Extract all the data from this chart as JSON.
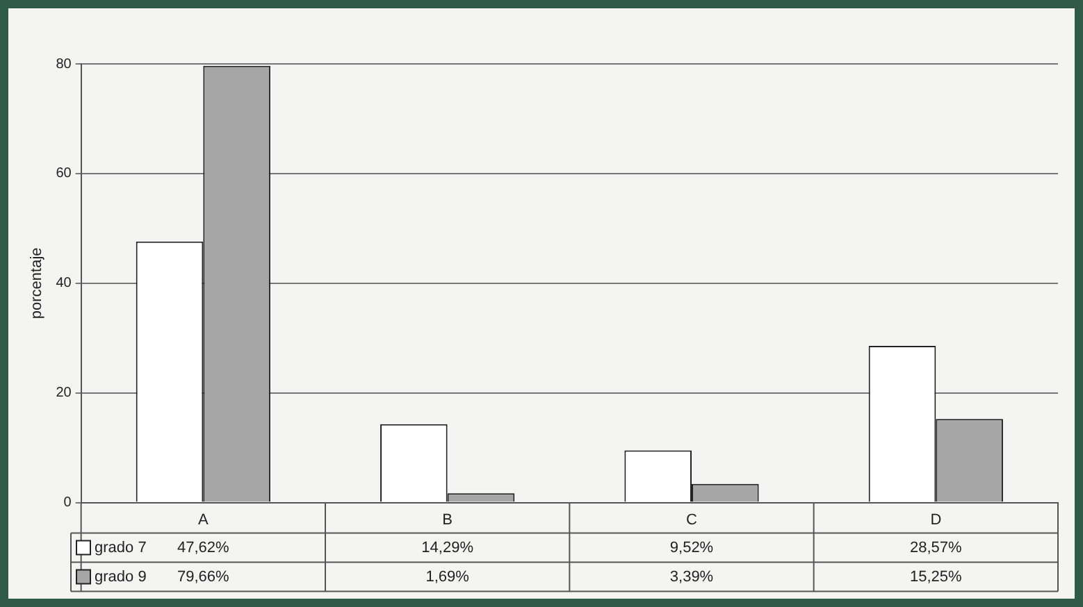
{
  "chart_data": {
    "type": "bar",
    "ylabel": "porcentaje",
    "categories": [
      "A",
      "B",
      "C",
      "D"
    ],
    "series": [
      {
        "name": "grado 7",
        "color": "#ffffff",
        "values": [
          47.62,
          14.29,
          9.52,
          28.57
        ],
        "value_labels": [
          "47,62%",
          "14,29%",
          "9,52%",
          "28,57%"
        ]
      },
      {
        "name": "grado 9",
        "color": "#a6a6a6",
        "values": [
          79.66,
          1.69,
          3.39,
          15.25
        ],
        "value_labels": [
          "79,66%",
          "1,69%",
          "3,39%",
          "15,25%"
        ]
      }
    ],
    "ylim": [
      0,
      80
    ],
    "yticks": [
      0,
      20,
      40,
      60,
      80
    ],
    "grid": "y",
    "legend": "bottom"
  }
}
